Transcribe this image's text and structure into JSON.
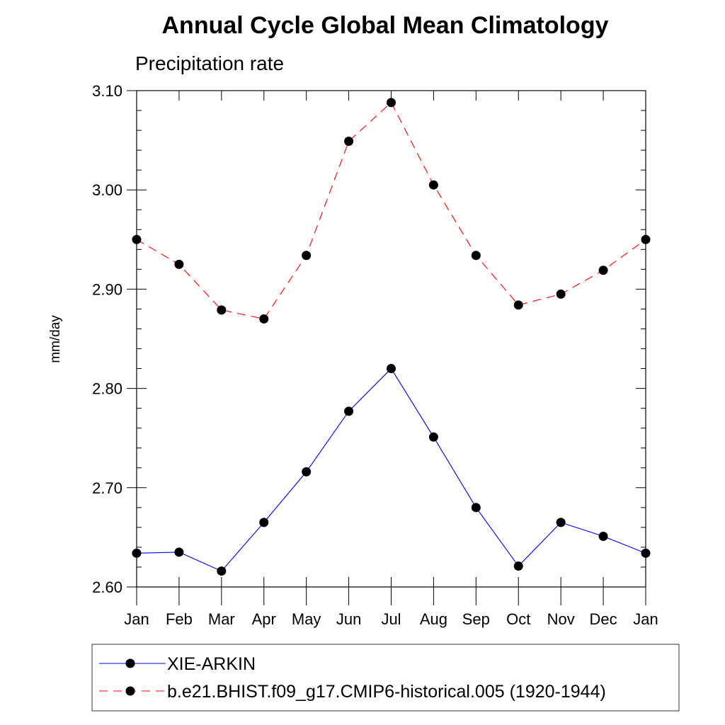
{
  "chart_data": {
    "type": "line",
    "title": "Annual Cycle Global Mean Climatology",
    "subtitle": "Precipitation rate",
    "ylabel": "mm/day",
    "xlabel": "",
    "categories": [
      "Jan",
      "Feb",
      "Mar",
      "Apr",
      "May",
      "Jun",
      "Jul",
      "Aug",
      "Sep",
      "Oct",
      "Nov",
      "Dec",
      "Jan"
    ],
    "ylim": [
      2.6,
      3.1
    ],
    "yticks": [
      "2.60",
      "2.70",
      "2.80",
      "2.90",
      "3.00",
      "3.10"
    ],
    "legend_placement": "bottom",
    "grid": false,
    "series": [
      {
        "name": "XIE-ARKIN",
        "color": "#0000ff",
        "line_style": "solid",
        "marker": "filled-circle",
        "values": [
          2.634,
          2.635,
          2.616,
          2.665,
          2.716,
          2.777,
          2.82,
          2.751,
          2.68,
          2.621,
          2.665,
          2.651,
          2.634
        ]
      },
      {
        "name": "b.e21.BHIST.f09_g17.CMIP6-historical.005 (1920-1944)",
        "color": "#ff0000",
        "line_style": "dashed",
        "marker": "filled-circle",
        "values": [
          2.95,
          2.925,
          2.879,
          2.87,
          2.934,
          3.049,
          3.088,
          3.005,
          2.934,
          2.884,
          2.895,
          2.919,
          2.95
        ]
      }
    ]
  }
}
